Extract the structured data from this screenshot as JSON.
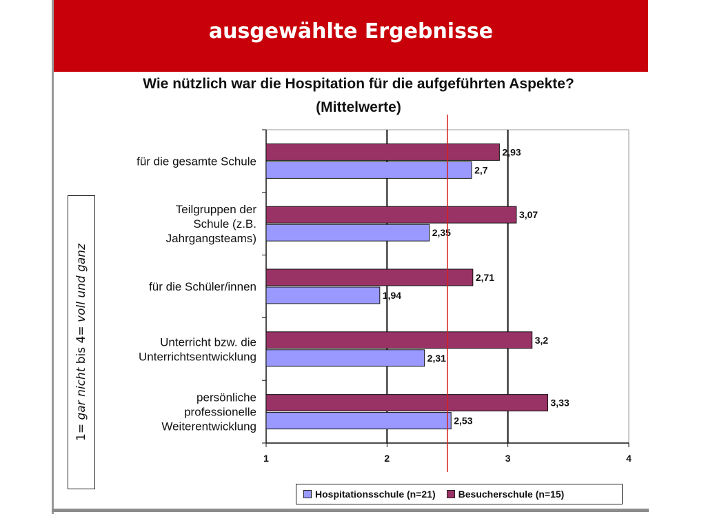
{
  "header": {
    "title": "ausgewählte Ergebnisse"
  },
  "side_note": "1= gar nicht bis 4= voll und ganz",
  "colors": {
    "header_bg": "#c8000a",
    "hospitation": "#9999ff",
    "besucher": "#993366",
    "reference_line": "#d62020"
  },
  "chart_data": {
    "type": "bar",
    "orientation": "horizontal",
    "title": "Wie nützlich war die Hospitation für die aufgeführten Aspekte?",
    "subtitle": "(Mittelwerte)",
    "categories": [
      [
        "für die gesamte Schule"
      ],
      [
        "Teilgruppen der",
        "Schule (z.B.",
        "Jahrgangsteams)"
      ],
      [
        "für die Schüler/innen"
      ],
      [
        "Unterricht bzw. die",
        "Unterrichtsentwicklung"
      ],
      [
        "persönliche",
        "professionelle",
        "Weiterentwicklung"
      ]
    ],
    "series": [
      {
        "name": "Besucherschule (n=15)",
        "values": [
          2.93,
          3.07,
          2.71,
          3.2,
          3.33
        ],
        "labels": [
          "2,93",
          "3,07",
          "2,71",
          "3,2",
          "3,33"
        ]
      },
      {
        "name": "Hospitationsschule (n=21)",
        "values": [
          2.7,
          2.35,
          1.94,
          2.31,
          2.53
        ],
        "labels": [
          "2,7",
          "2,35",
          "1,94",
          "2,31",
          "2,53"
        ]
      }
    ],
    "xlim": [
      1,
      4
    ],
    "xticks": [
      "1",
      "2",
      "3",
      "4"
    ],
    "reference_line_value": 2.5,
    "grid": true,
    "legend_position": "bottom",
    "legend": [
      {
        "name": "Hospitationsschule (n=21)",
        "color": "#9999ff"
      },
      {
        "name": "Besucherschule (n=15)",
        "color": "#993366"
      }
    ]
  }
}
